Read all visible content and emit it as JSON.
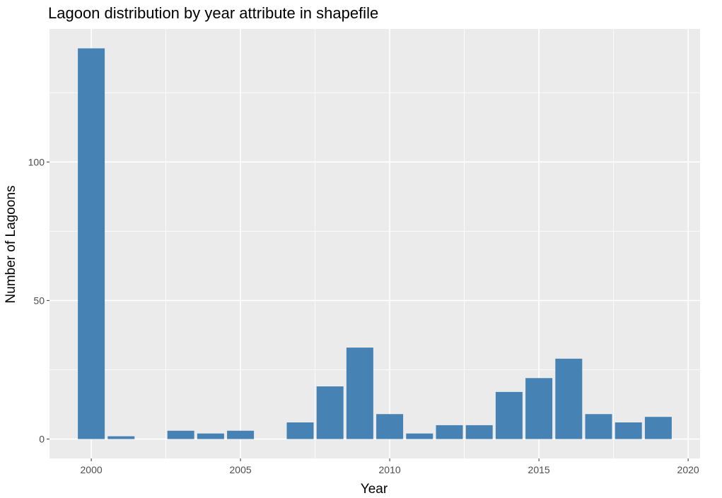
{
  "chart_data": {
    "type": "bar",
    "title": "Lagoon distribution by year attribute in shapefile",
    "xlabel": "Year",
    "ylabel": "Number of Lagoons",
    "x": [
      2000,
      2001,
      2003,
      2004,
      2005,
      2007,
      2008,
      2009,
      2010,
      2011,
      2012,
      2013,
      2014,
      2015,
      2016,
      2017,
      2018,
      2019
    ],
    "values": [
      141,
      1,
      3,
      2,
      3,
      6,
      19,
      33,
      9,
      2,
      5,
      5,
      17,
      22,
      29,
      9,
      6,
      8
    ],
    "xlim": [
      1998.6,
      2020.4
    ],
    "ylim": [
      -7,
      148
    ],
    "xticks": [
      2000,
      2005,
      2010,
      2015,
      2020
    ],
    "yticks": [
      0,
      50,
      100
    ],
    "bar_color": "#4682B4",
    "panel_background": "#EBEBEB",
    "grid": true
  }
}
